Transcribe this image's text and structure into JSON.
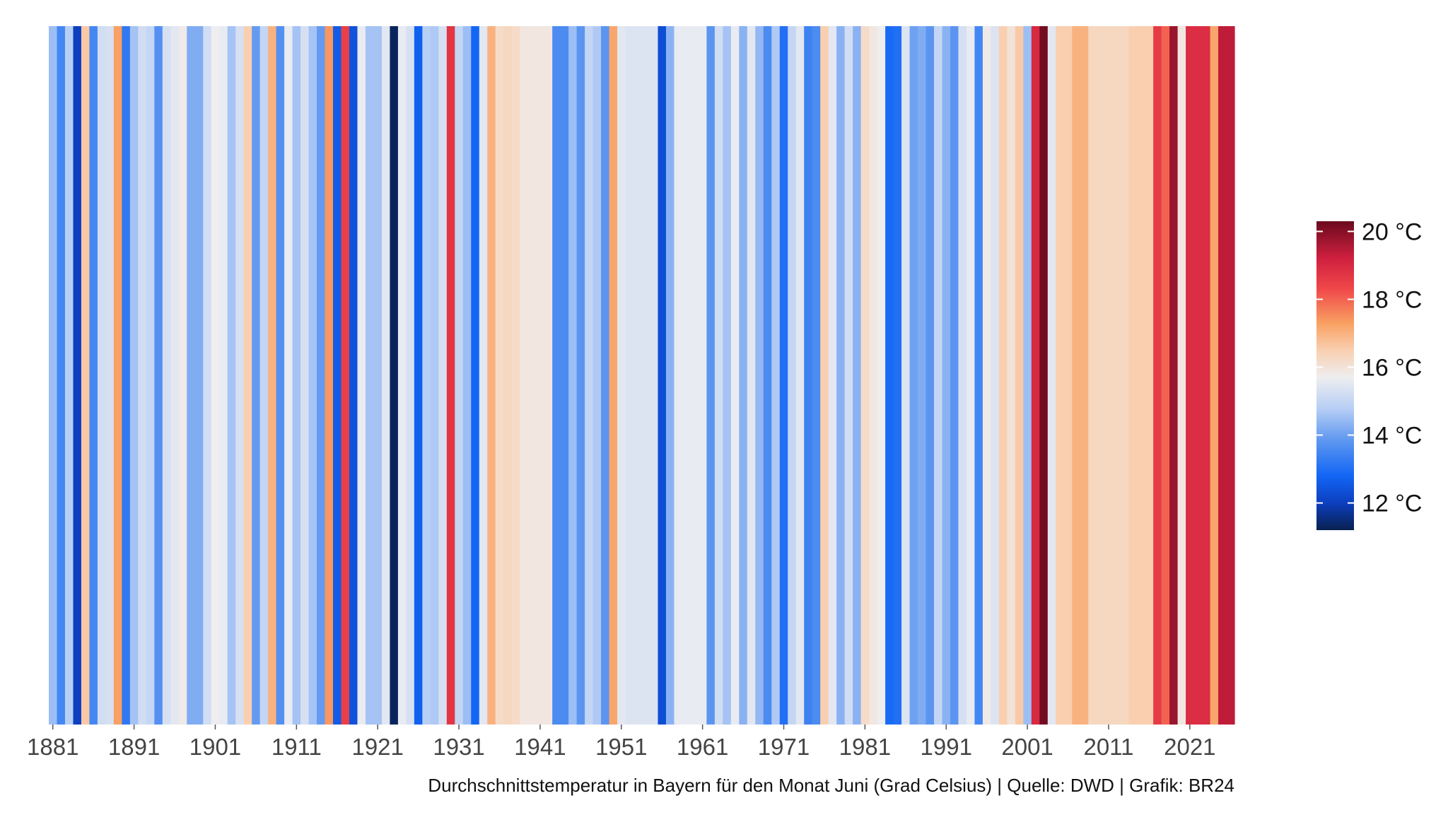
{
  "chart_data": {
    "type": "stripes",
    "caption": "Durchschnittstemperatur in Bayern für den Monat Juni (Grad Celsius) | Quelle: DWD | Grafik: BR24",
    "x": [
      1881,
      1882,
      1883,
      1884,
      1885,
      1886,
      1887,
      1888,
      1889,
      1890,
      1891,
      1892,
      1893,
      1894,
      1895,
      1896,
      1897,
      1898,
      1899,
      1900,
      1901,
      1902,
      1903,
      1904,
      1905,
      1906,
      1907,
      1908,
      1909,
      1910,
      1911,
      1912,
      1913,
      1914,
      1915,
      1916,
      1917,
      1918,
      1919,
      1920,
      1921,
      1922,
      1923,
      1924,
      1925,
      1926,
      1927,
      1928,
      1929,
      1930,
      1931,
      1932,
      1933,
      1934,
      1935,
      1936,
      1937,
      1938,
      1939,
      1940,
      1941,
      1942,
      1943,
      1944,
      1945,
      1946,
      1947,
      1948,
      1949,
      1950,
      1951,
      1952,
      1953,
      1954,
      1955,
      1956,
      1957,
      1958,
      1959,
      1960,
      1961,
      1962,
      1963,
      1964,
      1965,
      1966,
      1967,
      1968,
      1969,
      1970,
      1971,
      1972,
      1973,
      1974,
      1975,
      1976,
      1977,
      1978,
      1979,
      1980,
      1981,
      1982,
      1983,
      1984,
      1985,
      1986,
      1987,
      1988,
      1989,
      1990,
      1991,
      1992,
      1993,
      1994,
      1995,
      1996,
      1997,
      1998,
      1999,
      2000,
      2001,
      2002,
      2003,
      2004,
      2005,
      2006,
      2007,
      2008,
      2009,
      2010,
      2011,
      2012,
      2013,
      2014,
      2015,
      2016,
      2017,
      2018,
      2019,
      2020,
      2021,
      2022,
      2023,
      2024,
      2025,
      2026
    ],
    "values": [
      14.5,
      13.5,
      14.8,
      12.0,
      16.6,
      13.5,
      15.2,
      15.3,
      17.3,
      13.2,
      14.6,
      15.2,
      15.0,
      13.7,
      15.3,
      15.5,
      15.8,
      14.2,
      14.2,
      15.2,
      15.7,
      15.6,
      14.6,
      15.3,
      16.5,
      13.9,
      15.0,
      17.0,
      13.7,
      15.6,
      14.6,
      15.3,
      14.6,
      13.9,
      17.4,
      12.6,
      18.5,
      12.4,
      15.6,
      14.6,
      14.6,
      15.5,
      11.3,
      15.6,
      15.3,
      12.7,
      14.8,
      14.7,
      15.3,
      18.7,
      15.0,
      14.5,
      12.8,
      15.5,
      17.0,
      16.2,
      16.3,
      16.2,
      15.9,
      15.9,
      15.9,
      15.9,
      13.6,
      13.6,
      14.5,
      13.8,
      15.0,
      14.7,
      13.8,
      17.2,
      15.5,
      15.4,
      15.4,
      15.4,
      15.4,
      12.3,
      14.3,
      15.6,
      15.6,
      15.6,
      15.6,
      13.8,
      15.2,
      14.6,
      15.6,
      14.3,
      15.5,
      14.4,
      13.6,
      14.7,
      13.0,
      15.0,
      15.5,
      13.4,
      13.6,
      16.5,
      15.5,
      14.3,
      15.2,
      14.3,
      16.2,
      15.9,
      15.7,
      12.9,
      13.0,
      15.4,
      14.0,
      14.2,
      13.8,
      15.0,
      14.3,
      13.8,
      15.3,
      15.6,
      13.5,
      15.8,
      15.4,
      16.5,
      16.0,
      16.6,
      14.5,
      19.0,
      20.2,
      15.5,
      16.5,
      16.5,
      17.0,
      17.0,
      16.3,
      16.3,
      16.3,
      16.3,
      16.3,
      16.5,
      16.5,
      16.5,
      18.6,
      18.0,
      19.8,
      15.9,
      18.9,
      18.9,
      18.9,
      17.2,
      19.4,
      19.4
    ],
    "xlim": [
      1880.5,
      2026.5
    ],
    "xticks": [
      1881,
      1891,
      1901,
      1911,
      1921,
      1931,
      1941,
      1951,
      1961,
      1971,
      1981,
      1991,
      2001,
      2011,
      2021
    ],
    "colorbar": {
      "lim": [
        11.2,
        20.3
      ],
      "ticks": [
        {
          "value": 12,
          "label": "12 °C"
        },
        {
          "value": 14,
          "label": "14 °C"
        },
        {
          "value": 16,
          "label": "16 °C"
        },
        {
          "value": 18,
          "label": "18 °C"
        },
        {
          "value": 20,
          "label": "20 °C"
        }
      ]
    },
    "colormap": [
      {
        "value": 11.2,
        "color": "#08204f"
      },
      {
        "value": 12.0,
        "color": "#0d3fbf"
      },
      {
        "value": 12.8,
        "color": "#1266f5"
      },
      {
        "value": 13.8,
        "color": "#5b95f0"
      },
      {
        "value": 14.8,
        "color": "#b8cff5"
      },
      {
        "value": 15.7,
        "color": "#eeeef0"
      },
      {
        "value": 16.5,
        "color": "#f9cfb0"
      },
      {
        "value": 17.3,
        "color": "#f9a062"
      },
      {
        "value": 18.3,
        "color": "#f0484a"
      },
      {
        "value": 19.2,
        "color": "#d0203f"
      },
      {
        "value": 20.3,
        "color": "#6b0a1e"
      }
    ]
  }
}
